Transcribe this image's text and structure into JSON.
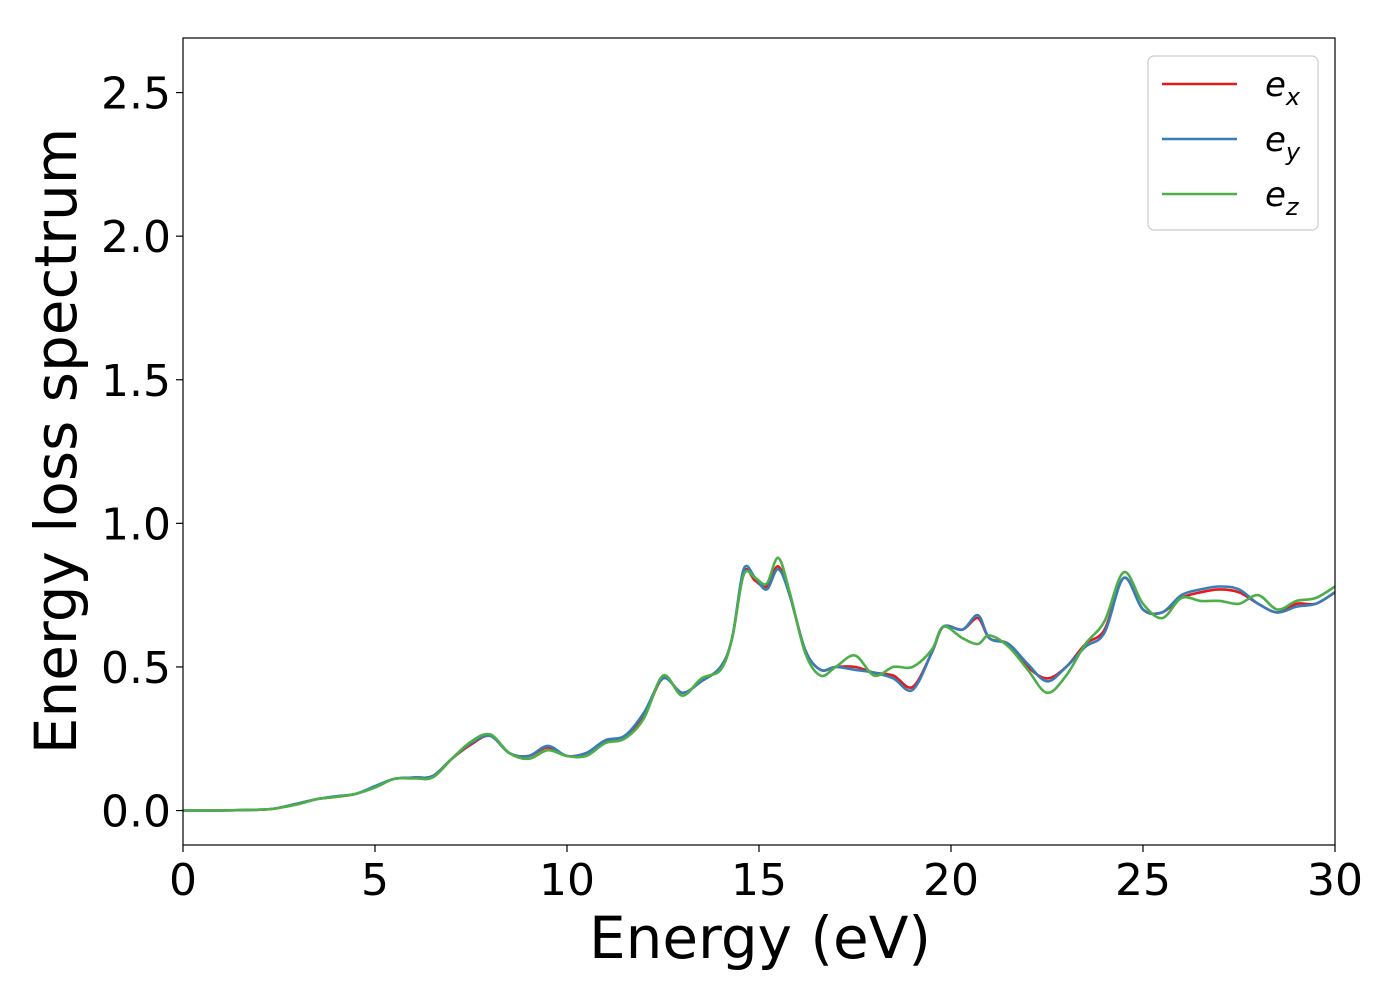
{
  "chart_data": {
    "type": "line",
    "title": "",
    "xlabel": "Energy (eV)",
    "ylabel": "Energy loss spectrum",
    "xlim": [
      0,
      30
    ],
    "ylim": [
      -0.12,
      2.69
    ],
    "xticks": [
      0,
      5,
      10,
      15,
      20,
      25,
      30
    ],
    "yticks": [
      0.0,
      0.5,
      1.0,
      1.5,
      2.0,
      2.5
    ],
    "xtick_labels": [
      "0",
      "5",
      "10",
      "15",
      "20",
      "25",
      "30"
    ],
    "ytick_labels": [
      "0.0",
      "0.5",
      "1.0",
      "1.5",
      "2.0",
      "2.5"
    ],
    "grid": false,
    "legend_position": "top-right",
    "series": [
      {
        "name": "e_x",
        "legend_base": "e",
        "legend_sub": "x",
        "color": "#e41a1c",
        "x": [
          0,
          1,
          2,
          2.4,
          3,
          3.5,
          4,
          4.5,
          5,
          5.5,
          6,
          6.5,
          7,
          7.5,
          8,
          8.5,
          9,
          9.5,
          10,
          10.5,
          11,
          11.5,
          12,
          12.5,
          13,
          13.5,
          14,
          14.3,
          14.6,
          14.9,
          15.2,
          15.5,
          15.8,
          16.2,
          16.6,
          17,
          17.5,
          18,
          18.5,
          19,
          19.5,
          19.8,
          20.3,
          20.7,
          21,
          21.5,
          22,
          22.5,
          23,
          23.5,
          24,
          24.5,
          25,
          25.5,
          26,
          26.5,
          27,
          27.5,
          28,
          28.5,
          29,
          29.5,
          30
        ],
        "y": [
          0,
          0,
          0.003,
          0.007,
          0.025,
          0.04,
          0.048,
          0.058,
          0.083,
          0.11,
          0.115,
          0.12,
          0.18,
          0.23,
          0.26,
          0.2,
          0.19,
          0.22,
          0.19,
          0.2,
          0.24,
          0.26,
          0.33,
          0.46,
          0.41,
          0.45,
          0.5,
          0.6,
          0.83,
          0.8,
          0.78,
          0.85,
          0.75,
          0.56,
          0.49,
          0.5,
          0.5,
          0.48,
          0.47,
          0.43,
          0.55,
          0.64,
          0.63,
          0.67,
          0.6,
          0.58,
          0.5,
          0.46,
          0.5,
          0.58,
          0.63,
          0.81,
          0.7,
          0.69,
          0.74,
          0.76,
          0.77,
          0.76,
          0.72,
          0.69,
          0.72,
          0.72,
          0.76
        ]
      },
      {
        "name": "e_y",
        "legend_base": "e",
        "legend_sub": "y",
        "color": "#377eb8",
        "x": [
          0,
          1,
          2,
          2.4,
          3,
          3.5,
          4,
          4.5,
          5,
          5.5,
          6,
          6.5,
          7,
          7.5,
          8,
          8.5,
          9,
          9.5,
          10,
          10.5,
          11,
          11.5,
          12,
          12.5,
          13,
          13.5,
          14,
          14.3,
          14.6,
          14.9,
          15.2,
          15.5,
          15.8,
          16.2,
          16.6,
          17,
          17.5,
          18,
          18.5,
          19,
          19.5,
          19.8,
          20.3,
          20.7,
          21,
          21.5,
          22,
          22.5,
          23,
          23.5,
          24,
          24.5,
          25,
          25.5,
          26,
          26.5,
          27,
          27.5,
          28,
          28.5,
          29,
          29.5,
          30
        ],
        "y": [
          0,
          0,
          0.003,
          0.007,
          0.025,
          0.04,
          0.05,
          0.058,
          0.085,
          0.11,
          0.115,
          0.12,
          0.18,
          0.235,
          0.26,
          0.2,
          0.19,
          0.225,
          0.19,
          0.2,
          0.245,
          0.26,
          0.34,
          0.46,
          0.41,
          0.45,
          0.5,
          0.6,
          0.84,
          0.81,
          0.77,
          0.84,
          0.75,
          0.56,
          0.49,
          0.5,
          0.49,
          0.48,
          0.46,
          0.42,
          0.55,
          0.64,
          0.63,
          0.68,
          0.6,
          0.58,
          0.51,
          0.45,
          0.5,
          0.57,
          0.62,
          0.81,
          0.7,
          0.69,
          0.75,
          0.77,
          0.78,
          0.77,
          0.72,
          0.69,
          0.71,
          0.72,
          0.76
        ]
      },
      {
        "name": "e_z",
        "legend_base": "e",
        "legend_sub": "z",
        "color": "#4daf4a",
        "x": [
          0,
          1,
          2,
          2.4,
          3,
          3.5,
          4,
          4.5,
          5,
          5.5,
          6,
          6.5,
          7,
          7.5,
          8,
          8.5,
          9,
          9.5,
          10,
          10.5,
          11,
          11.5,
          12,
          12.5,
          13,
          13.5,
          14,
          14.3,
          14.6,
          14.9,
          15.2,
          15.5,
          15.8,
          16.2,
          16.6,
          17,
          17.5,
          18,
          18.5,
          19,
          19.5,
          19.8,
          20.3,
          20.7,
          21,
          21.5,
          22,
          22.5,
          23,
          23.5,
          24,
          24.5,
          25,
          25.5,
          26,
          26.5,
          27,
          27.5,
          28,
          28.5,
          29,
          29.5,
          30
        ],
        "y": [
          0,
          0,
          0.003,
          0.007,
          0.022,
          0.04,
          0.048,
          0.058,
          0.08,
          0.11,
          0.112,
          0.115,
          0.18,
          0.24,
          0.265,
          0.2,
          0.18,
          0.21,
          0.19,
          0.19,
          0.235,
          0.25,
          0.32,
          0.47,
          0.4,
          0.46,
          0.49,
          0.6,
          0.82,
          0.81,
          0.79,
          0.88,
          0.76,
          0.55,
          0.47,
          0.5,
          0.54,
          0.47,
          0.5,
          0.5,
          0.56,
          0.64,
          0.6,
          0.58,
          0.61,
          0.57,
          0.49,
          0.41,
          0.47,
          0.58,
          0.66,
          0.83,
          0.72,
          0.67,
          0.74,
          0.73,
          0.73,
          0.72,
          0.75,
          0.7,
          0.73,
          0.74,
          0.78
        ]
      }
    ]
  }
}
